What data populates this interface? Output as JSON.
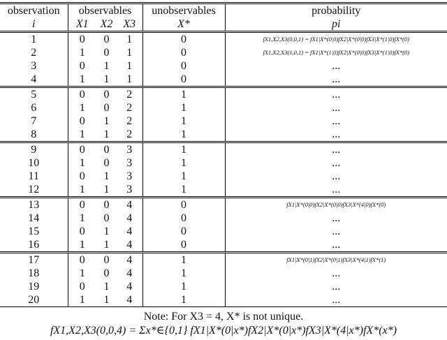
{
  "header": {
    "observation": "observation",
    "index": "i",
    "observables": "observables",
    "x_labels": [
      "X1",
      "X2",
      "X3"
    ],
    "unobservables": "unobservables",
    "latent": "X*",
    "probability": "probability",
    "p": "pi"
  },
  "rows": [
    [
      "1",
      "0",
      "0",
      "1",
      "0",
      "fX1,X2,X3(0,0,1) = fX1|X*(0|0)fX2|X*(0|0)fX3|X*(1|0)fX*(0)"
    ],
    [
      "2",
      "1",
      "0",
      "1",
      "0",
      "fX1,X2,X3(1,0,1) = fX1|X*(1|0)fX2|X*(0|0)fX3|X*(1|0)fX*(0)"
    ],
    [
      "3",
      "0",
      "1",
      "1",
      "0",
      "..."
    ],
    [
      "4",
      "1",
      "1",
      "1",
      "0",
      "..."
    ],
    [
      "5",
      "0",
      "0",
      "2",
      "1",
      "..."
    ],
    [
      "6",
      "1",
      "0",
      "2",
      "1",
      "..."
    ],
    [
      "7",
      "0",
      "1",
      "2",
      "1",
      "..."
    ],
    [
      "8",
      "1",
      "1",
      "2",
      "1",
      "..."
    ],
    [
      "9",
      "0",
      "0",
      "3",
      "1",
      "..."
    ],
    [
      "10",
      "1",
      "0",
      "3",
      "1",
      "..."
    ],
    [
      "11",
      "0",
      "1",
      "3",
      "1",
      "..."
    ],
    [
      "12",
      "1",
      "1",
      "3",
      "1",
      "..."
    ],
    [
      "13",
      "0",
      "0",
      "4",
      "0",
      "fX1|X*(0|0)fX2|X*(0|0)fX3|X*(4|0)fX*(0)"
    ],
    [
      "14",
      "1",
      "0",
      "4",
      "0",
      "..."
    ],
    [
      "15",
      "0",
      "1",
      "4",
      "0",
      "..."
    ],
    [
      "16",
      "1",
      "1",
      "4",
      "0",
      "..."
    ],
    [
      "17",
      "0",
      "0",
      "4",
      "1",
      "fX1|X*(0|1)fX2|X*(0|1)fX3|X*(4|1)fX*(1)"
    ],
    [
      "18",
      "1",
      "0",
      "4",
      "1",
      "..."
    ],
    [
      "19",
      "0",
      "1",
      "4",
      "1",
      "..."
    ],
    [
      "20",
      "1",
      "1",
      "4",
      "1",
      "..."
    ]
  ],
  "notes": [
    "Note: For X3 = 4, X* is not unique.",
    "fX1,X2,X3(0,0,4) = Σx*∈{0,1} fX1|X*(0|x*)fX2|X*(0|x*)fX3|X*(4|x*)fX*(x*)"
  ]
}
